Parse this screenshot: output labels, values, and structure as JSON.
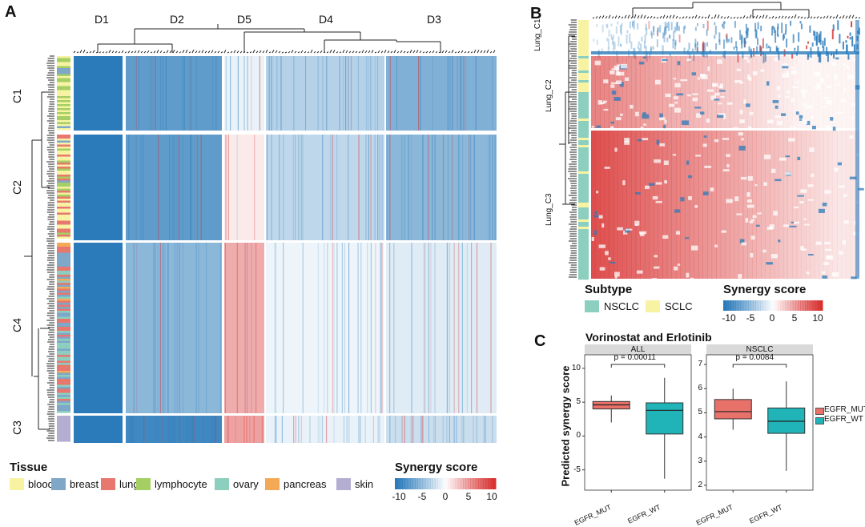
{
  "panel_a": {
    "letter": "A",
    "column_clusters": [
      "D1",
      "D2",
      "D5",
      "D4",
      "D3"
    ],
    "row_clusters": [
      "C1",
      "C2",
      "C4",
      "C3"
    ],
    "tissue_legend": {
      "title": "Tissue",
      "items": [
        {
          "label": "blood",
          "color": "#f7f3a3"
        },
        {
          "label": "breast",
          "color": "#7ea7c8"
        },
        {
          "label": "lung",
          "color": "#e8776e"
        },
        {
          "label": "lymphocyte",
          "color": "#a5cf62"
        },
        {
          "label": "ovary",
          "color": "#8ccfbf"
        },
        {
          "label": "pancreas",
          "color": "#f3a955"
        },
        {
          "label": "skin",
          "color": "#b3aed2"
        }
      ]
    },
    "scale": {
      "title": "Synergy score",
      "ticks": [
        "-10",
        "-5",
        "0",
        "5",
        "10"
      ]
    }
  },
  "panel_b": {
    "letter": "B",
    "row_clusters": [
      "Lung_C1",
      "Lung_C2",
      "Lung_C3"
    ],
    "subtype_legend": {
      "title": "Subtype",
      "items": [
        {
          "label": "NSCLC",
          "color": "#8ccfbf"
        },
        {
          "label": "SCLC",
          "color": "#f7f3a3"
        }
      ]
    },
    "scale": {
      "title": "Synergy score",
      "ticks": [
        "-10",
        "-5",
        "0",
        "5",
        "10"
      ]
    }
  },
  "panel_c": {
    "letter": "C"
  },
  "colors": {
    "negative": "#2b7bba",
    "neutral": "#ffffff",
    "positive": "#d7302f",
    "mut": "#e8716a",
    "wt": "#20b4b8"
  },
  "chart_data": [
    {
      "type": "boxplot",
      "title": "Vorinostat and Erlotinib",
      "facet": "ALL",
      "ylabel": "Predicted synergy score",
      "categories": [
        "EGFR_MUT",
        "EGFR_WT"
      ],
      "ylim": [
        -8,
        12
      ],
      "yticks": [
        "-5",
        "0",
        "5",
        "10"
      ],
      "boxes": [
        {
          "name": "EGFR_MUT",
          "min": 2,
          "q1": 4,
          "median": 4.6,
          "q3": 5.1,
          "max": 6
        },
        {
          "name": "EGFR_WT",
          "min": -6.3,
          "q1": 0.3,
          "median": 3.8,
          "q3": 4.9,
          "max": 8.6
        }
      ],
      "annotation": "p = 0.00011"
    },
    {
      "type": "boxplot",
      "facet": "NSCLC",
      "categories": [
        "EGFR_MUT",
        "EGFR_WT"
      ],
      "ylim": [
        1.8,
        7.4
      ],
      "yticks": [
        "2",
        "3",
        "4",
        "5",
        "6",
        "7"
      ],
      "boxes": [
        {
          "name": "EGFR_MUT",
          "min": 4.3,
          "q1": 4.75,
          "median": 5.05,
          "q3": 5.55,
          "max": 6.0
        },
        {
          "name": "EGFR_WT",
          "min": 2.6,
          "q1": 4.15,
          "median": 4.65,
          "q3": 5.2,
          "max": 6.3
        }
      ],
      "annotation": "p = 0.0084",
      "legend": [
        "EGFR_MUT",
        "EGFR_WT"
      ]
    }
  ]
}
